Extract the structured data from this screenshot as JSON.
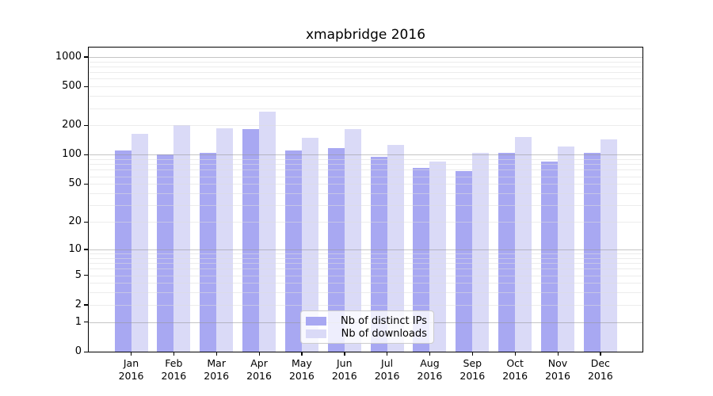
{
  "chart_data": {
    "type": "bar",
    "title": "xmapbridge 2016",
    "categories": [
      "Jan",
      "Feb",
      "Mar",
      "Apr",
      "May",
      "Jun",
      "Jul",
      "Aug",
      "Sep",
      "Oct",
      "Nov",
      "Dec"
    ],
    "year_label": "2016",
    "series": [
      {
        "name": "Nb of distinct IPs",
        "color": "#a8a8f2",
        "values": [
          110,
          100,
          104,
          185,
          110,
          118,
          96,
          73,
          68,
          104,
          86,
          104
        ]
      },
      {
        "name": "Nb of downloads",
        "color": "#dadaf7",
        "values": [
          165,
          200,
          188,
          275,
          150,
          182,
          127,
          86,
          104,
          153,
          122,
          145
        ]
      }
    ],
    "xlabel": "",
    "ylabel": "",
    "y_scale": "log10(1+x)",
    "ylim": [
      0,
      1180
    ],
    "y_ticks": [
      0,
      1,
      2,
      5,
      10,
      20,
      50,
      100,
      200,
      500,
      1000
    ],
    "grid_major_values": [
      1,
      10,
      100,
      1000
    ],
    "grid_minor_values": [
      2,
      3,
      4,
      5,
      6,
      7,
      8,
      9,
      20,
      30,
      40,
      50,
      60,
      70,
      80,
      90,
      200,
      300,
      400,
      500,
      600,
      700,
      800,
      900
    ],
    "legend_position": "lower center inside axes"
  }
}
